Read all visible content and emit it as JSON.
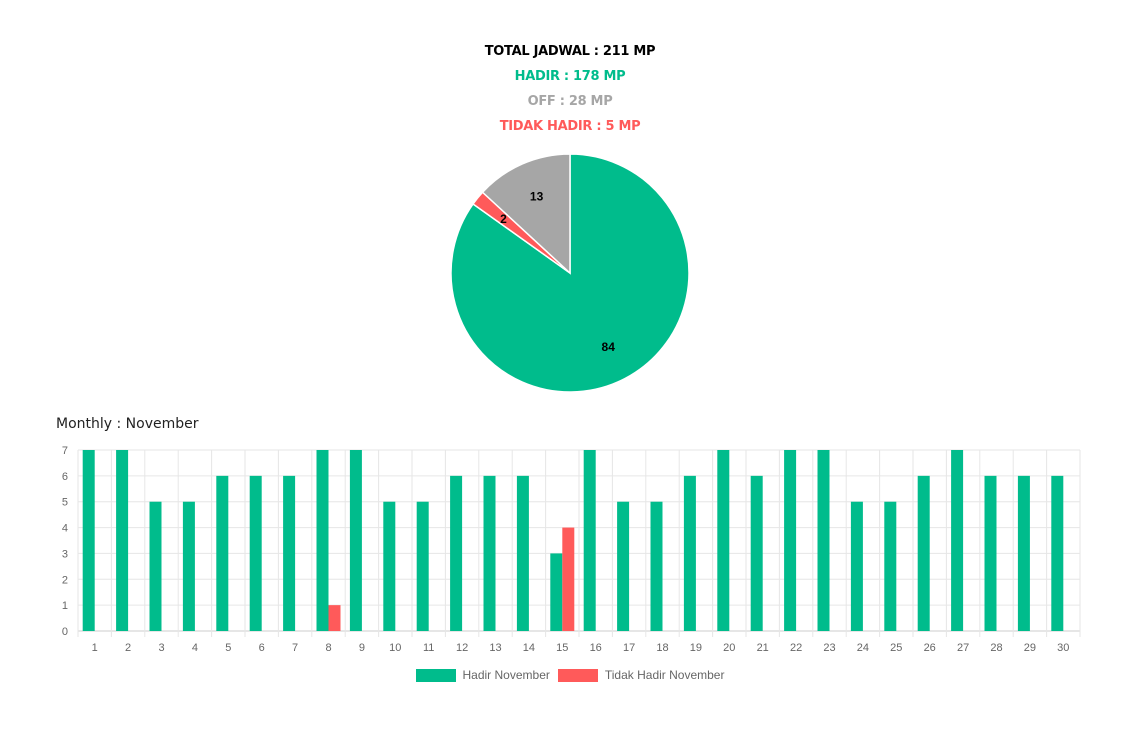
{
  "summary": {
    "total": "TOTAL JADWAL : 211 MP",
    "hadir": "HADIR : 178 MP",
    "off": "OFF : 28 MP",
    "tidak_hadir": "TIDAK HADIR : 5 MP"
  },
  "colors": {
    "total": "#000000",
    "hadir": "#00BC8C",
    "off": "#A6A6A6",
    "tidak_hadir": "#FF5A5A"
  },
  "monthly": {
    "title": "Monthly : November"
  },
  "chart_data": [
    {
      "type": "pie",
      "labels": [
        "",
        "",
        ""
      ],
      "values": [
        84,
        2,
        13
      ],
      "value_labels": [
        "84",
        "2",
        "13"
      ],
      "colors": [
        "#00BC8C",
        "#FF5A5A",
        "#A6A6A6"
      ]
    },
    {
      "type": "bar",
      "categories": [
        "1",
        "2",
        "3",
        "4",
        "5",
        "6",
        "7",
        "8",
        "9",
        "10",
        "11",
        "12",
        "13",
        "14",
        "15",
        "16",
        "17",
        "18",
        "19",
        "20",
        "21",
        "22",
        "23",
        "24",
        "25",
        "26",
        "27",
        "28",
        "29",
        "30"
      ],
      "series": [
        {
          "name": "Hadir November",
          "color": "#00BC8C",
          "values": [
            7,
            7,
            5,
            5,
            6,
            6,
            6,
            7,
            7,
            5,
            5,
            6,
            6,
            6,
            3,
            7,
            5,
            5,
            6,
            7,
            6,
            7,
            7,
            5,
            5,
            6,
            7,
            6,
            6,
            6
          ]
        },
        {
          "name": "Tidak Hadir November",
          "color": "#FF5A5A",
          "values": [
            0,
            0,
            0,
            0,
            0,
            0,
            0,
            1,
            0,
            0,
            0,
            0,
            0,
            0,
            4,
            0,
            0,
            0,
            0,
            0,
            0,
            0,
            0,
            0,
            0,
            0,
            0,
            0,
            0,
            0
          ]
        }
      ],
      "y_ticks": [
        "0",
        "1",
        "2",
        "3",
        "4",
        "5",
        "6",
        "7"
      ],
      "ylim": [
        0,
        7
      ],
      "grid": true,
      "legend_position": "bottom"
    }
  ]
}
